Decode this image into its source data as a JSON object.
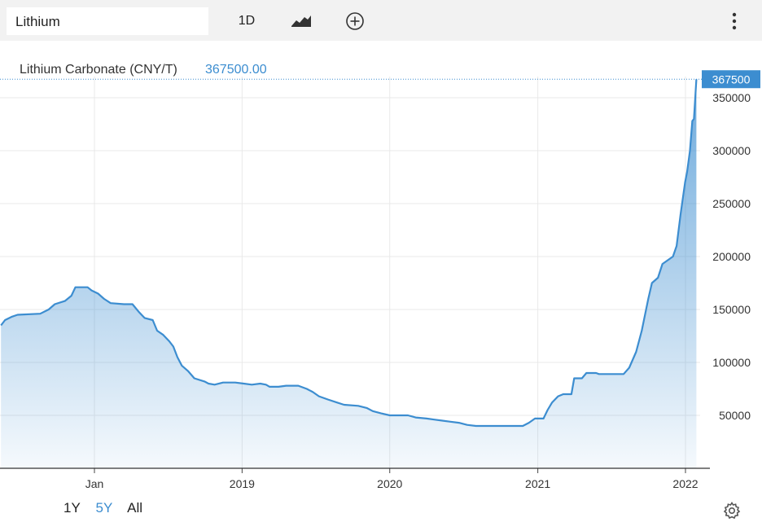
{
  "toolbar": {
    "search_value": "Lithium",
    "period_label": "1D",
    "chart_type_icon": "line-chart-icon",
    "add_icon": "plus-circle-icon",
    "more_icon": "vertical-dots-icon"
  },
  "range_buttons": [
    {
      "label": "1Y",
      "active": false
    },
    {
      "label": "5Y",
      "active": true
    },
    {
      "label": "All",
      "active": false
    }
  ],
  "settings_icon": "gear-icon",
  "colors": {
    "line": "#3c8dd0",
    "accent": "#3c8dd0",
    "grid": "#e9e9e9"
  },
  "chart_data": {
    "type": "area",
    "title": "Lithium Carbonate (CNY/T)",
    "last_value_label": "367500.00",
    "last_value_tag": "367500",
    "x_ticks": [
      {
        "label": "Jan",
        "date": "2018-01-01"
      },
      {
        "label": "2019",
        "date": "2019-01-01"
      },
      {
        "label": "2020",
        "date": "2020-01-01"
      },
      {
        "label": "2021",
        "date": "2021-01-01"
      },
      {
        "label": "2022",
        "date": "2022-01-01"
      }
    ],
    "y_ticks": [
      50000,
      100000,
      150000,
      200000,
      250000,
      300000,
      350000
    ],
    "ylim": [
      0,
      367500
    ],
    "grid": true,
    "series": [
      {
        "points": [
          [
            "2017-05-15",
            135000
          ],
          [
            "2017-05-25",
            140000
          ],
          [
            "2017-06-10",
            143000
          ],
          [
            "2017-06-25",
            145000
          ],
          [
            "2017-08-20",
            146000
          ],
          [
            "2017-09-10",
            150000
          ],
          [
            "2017-09-25",
            155000
          ],
          [
            "2017-10-20",
            158000
          ],
          [
            "2017-11-05",
            163000
          ],
          [
            "2017-11-15",
            171000
          ],
          [
            "2017-12-15",
            171000
          ],
          [
            "2017-12-25",
            168000
          ],
          [
            "2018-01-10",
            165000
          ],
          [
            "2018-01-25",
            160000
          ],
          [
            "2018-02-10",
            156000
          ],
          [
            "2018-03-15",
            155000
          ],
          [
            "2018-04-05",
            155000
          ],
          [
            "2018-04-20",
            148000
          ],
          [
            "2018-05-05",
            142000
          ],
          [
            "2018-05-25",
            140000
          ],
          [
            "2018-06-05",
            130000
          ],
          [
            "2018-06-20",
            126000
          ],
          [
            "2018-07-05",
            120000
          ],
          [
            "2018-07-15",
            115000
          ],
          [
            "2018-07-25",
            105000
          ],
          [
            "2018-08-05",
            97000
          ],
          [
            "2018-08-20",
            92000
          ],
          [
            "2018-09-05",
            85000
          ],
          [
            "2018-09-30",
            82000
          ],
          [
            "2018-10-10",
            80000
          ],
          [
            "2018-10-25",
            79000
          ],
          [
            "2018-11-15",
            81000
          ],
          [
            "2018-12-15",
            81000
          ],
          [
            "2019-01-05",
            80000
          ],
          [
            "2019-01-25",
            79000
          ],
          [
            "2019-02-15",
            80000
          ],
          [
            "2019-03-01",
            79000
          ],
          [
            "2019-03-10",
            77000
          ],
          [
            "2019-04-01",
            77000
          ],
          [
            "2019-04-20",
            78000
          ],
          [
            "2019-05-20",
            78000
          ],
          [
            "2019-06-10",
            75000
          ],
          [
            "2019-06-25",
            72000
          ],
          [
            "2019-07-10",
            68000
          ],
          [
            "2019-08-01",
            65000
          ],
          [
            "2019-08-25",
            62000
          ],
          [
            "2019-09-10",
            60000
          ],
          [
            "2019-10-15",
            59000
          ],
          [
            "2019-11-05",
            57000
          ],
          [
            "2019-11-20",
            54000
          ],
          [
            "2019-12-10",
            52000
          ],
          [
            "2020-01-01",
            50000
          ],
          [
            "2020-02-15",
            50000
          ],
          [
            "2020-03-05",
            48000
          ],
          [
            "2020-04-01",
            47000
          ],
          [
            "2020-04-20",
            46000
          ],
          [
            "2020-05-10",
            45000
          ],
          [
            "2020-05-30",
            44000
          ],
          [
            "2020-06-20",
            43000
          ],
          [
            "2020-07-10",
            41000
          ],
          [
            "2020-08-01",
            40000
          ],
          [
            "2020-11-25",
            40000
          ],
          [
            "2020-12-10",
            43000
          ],
          [
            "2020-12-25",
            47000
          ],
          [
            "2021-01-15",
            47000
          ],
          [
            "2021-01-25",
            55000
          ],
          [
            "2021-02-05",
            62000
          ],
          [
            "2021-02-20",
            68000
          ],
          [
            "2021-03-05",
            70000
          ],
          [
            "2021-03-25",
            70000
          ],
          [
            "2021-04-01",
            85000
          ],
          [
            "2021-04-20",
            85000
          ],
          [
            "2021-05-01",
            90000
          ],
          [
            "2021-05-25",
            90000
          ],
          [
            "2021-06-01",
            89000
          ],
          [
            "2021-07-15",
            89000
          ],
          [
            "2021-08-01",
            89000
          ],
          [
            "2021-08-15",
            95000
          ],
          [
            "2021-09-01",
            110000
          ],
          [
            "2021-09-15",
            130000
          ],
          [
            "2021-10-01",
            160000
          ],
          [
            "2021-10-10",
            175000
          ],
          [
            "2021-10-25",
            180000
          ],
          [
            "2021-11-05",
            193000
          ],
          [
            "2021-11-20",
            197000
          ],
          [
            "2021-12-01",
            200000
          ],
          [
            "2021-12-10",
            210000
          ],
          [
            "2021-12-20",
            240000
          ],
          [
            "2021-12-31",
            270000
          ],
          [
            "2022-01-05",
            280000
          ],
          [
            "2022-01-12",
            300000
          ],
          [
            "2022-01-18",
            328000
          ],
          [
            "2022-01-22",
            330000
          ],
          [
            "2022-01-28",
            367500
          ]
        ]
      }
    ]
  }
}
